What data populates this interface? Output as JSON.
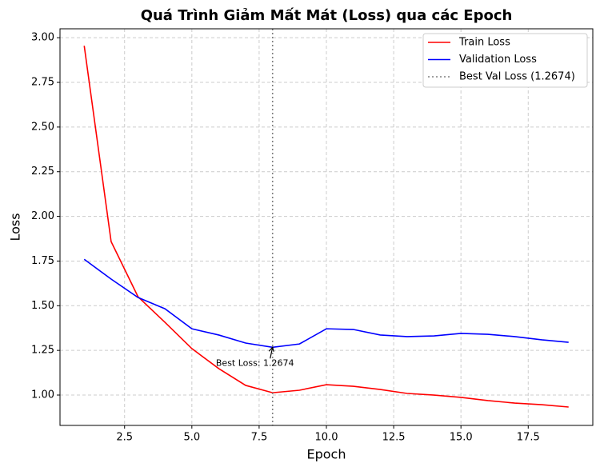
{
  "chart_data": {
    "type": "line",
    "title": "Quá Trình Giảm Mất Mát (Loss) qua các Epoch",
    "xlabel": "Epoch",
    "ylabel": "Loss",
    "x": [
      1,
      2,
      3,
      4,
      5,
      6,
      7,
      8,
      9,
      10,
      11,
      12,
      13,
      14,
      15,
      16,
      17,
      18,
      19
    ],
    "series": [
      {
        "name": "Train Loss",
        "color": "#ff0000",
        "values": [
          2.955,
          1.859,
          1.55,
          1.407,
          1.26,
          1.148,
          1.054,
          1.013,
          1.027,
          1.058,
          1.049,
          1.031,
          1.009,
          1.0,
          0.987,
          0.969,
          0.955,
          0.946,
          0.933
        ]
      },
      {
        "name": "Validation Loss",
        "color": "#0000ff",
        "values": [
          1.76,
          1.649,
          1.546,
          1.483,
          1.371,
          1.336,
          1.291,
          1.2674,
          1.286,
          1.371,
          1.367,
          1.336,
          1.327,
          1.331,
          1.345,
          1.34,
          1.327,
          1.309,
          1.295
        ]
      }
    ],
    "best_line": {
      "x": 8,
      "name": "Best Val Loss (1.2674)",
      "color": "#808080"
    },
    "annotation": {
      "text": "Best Loss: 1.2674",
      "x": 8,
      "y": 1.2674,
      "color": "#008000"
    },
    "xlim": [
      0.1,
      19.9
    ],
    "ylim": [
      0.83,
      3.05
    ],
    "xticks": [
      2.5,
      {
        "value": 5,
        "label": "5.0"
      },
      7.5,
      {
        "value": 10,
        "label": "10.0"
      },
      12.5,
      {
        "value": 15,
        "label": "15.0"
      },
      17.5
    ],
    "yticks": [
      {
        "value": 1,
        "label": "1.00"
      },
      {
        "value": 1.25,
        "label": "1.25"
      },
      {
        "value": 1.5,
        "label": "1.50"
      },
      {
        "value": 1.75,
        "label": "1.75"
      },
      {
        "value": 2,
        "label": "2.00"
      },
      {
        "value": 2.25,
        "label": "2.25"
      },
      {
        "value": 2.5,
        "label": "2.50"
      },
      {
        "value": 2.75,
        "label": "2.75"
      },
      {
        "value": 3,
        "label": "3.00"
      }
    ],
    "grid": true,
    "legend": "upper right"
  }
}
